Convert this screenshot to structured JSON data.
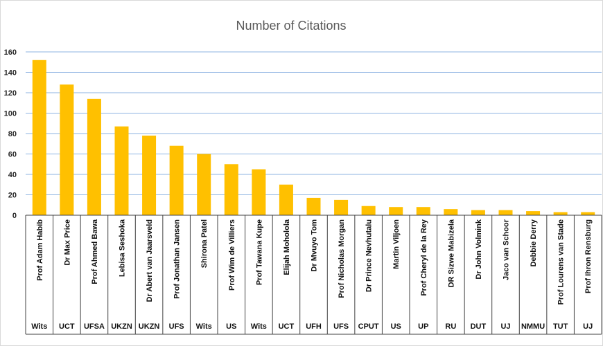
{
  "chart_data": {
    "type": "bar",
    "title": "Number of Citations",
    "xlabel": "",
    "ylabel": "",
    "ylim": [
      0,
      160
    ],
    "yticks": [
      0,
      20,
      40,
      60,
      80,
      100,
      120,
      140,
      160
    ],
    "grid": true,
    "legend": "none",
    "bar_color": "#FFC000",
    "categories": [
      "Prof Adam Habib",
      "Dr Max Price",
      "Prof Ahmed Bawa",
      "Lebisa Seshoka",
      "Dr Abert van Jaarsveld",
      "Prof Jonathan Jansen",
      "Shirona Patel",
      "Prof Wim de Villiers",
      "Prof Tawana Kupe",
      "Elijah Moholola",
      "Dr Mvuyo Tom",
      "Prof Nicholas Morgan",
      "Dr Prince Nevhutalu",
      "Martin Viljoen",
      "Prof Cheryl de la Rey",
      "DR Sizwe Mabizela",
      "Dr John Volmink",
      "Jaco van Schoor",
      "Debbie Derry",
      "Prof Lourens van Stade",
      "Prof Ihron Rensburg"
    ],
    "institutions": [
      "Wits",
      "UCT",
      "UFSA",
      "UKZN",
      "UKZN",
      "UFS",
      "Wits",
      "US",
      "Wits",
      "UCT",
      "UFH",
      "UFS",
      "CPUT",
      "US",
      "UP",
      "RU",
      "DUT",
      "UJ",
      "NMMU",
      "TUT",
      "UJ"
    ],
    "values": [
      152,
      128,
      114,
      87,
      78,
      68,
      60,
      50,
      45,
      30,
      17,
      15,
      9,
      8,
      8,
      6,
      5,
      5,
      4,
      3,
      3
    ]
  }
}
